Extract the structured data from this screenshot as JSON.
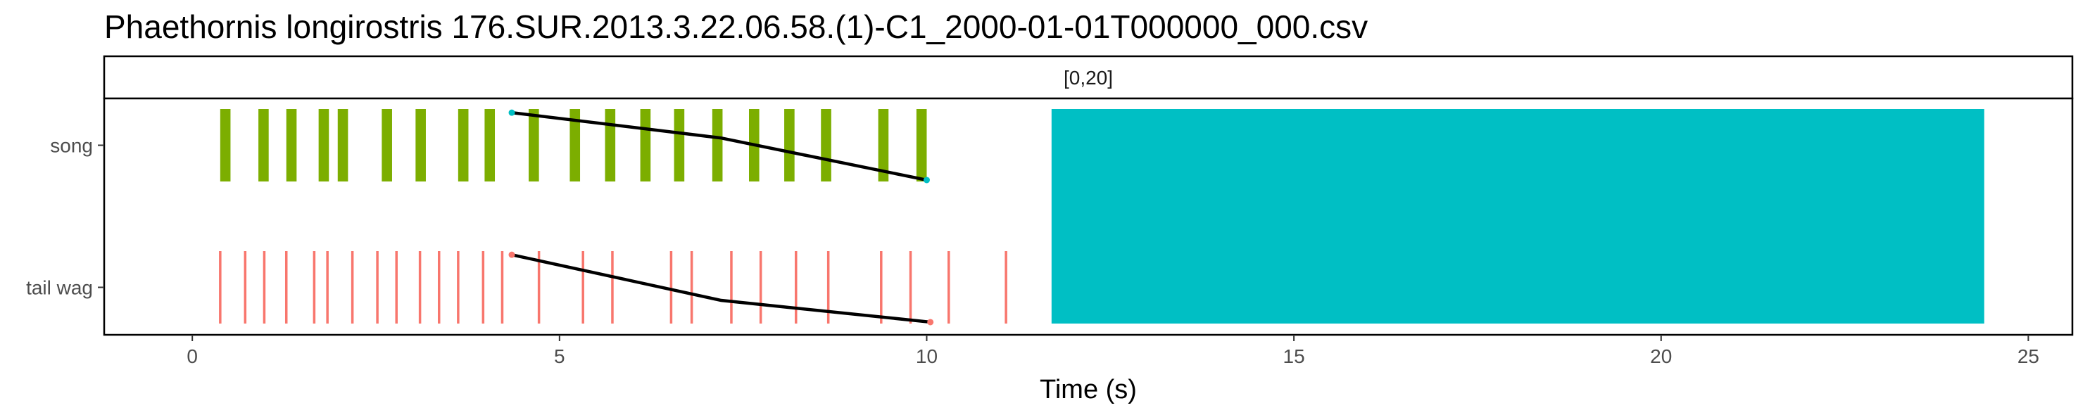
{
  "chart_data": {
    "type": "timeline",
    "title": "Phaethornis longirostris   176.SUR.2013.3.22.06.58.(1)-C1_2000-01-01T000000_000.csv",
    "facet_label": "[0,20]",
    "xlabel": "Time (s)",
    "xlim": [
      -1.2,
      25.6
    ],
    "x_ticks": [
      0,
      5,
      10,
      15,
      20,
      25
    ],
    "x_tick_labels": [
      "0",
      "5",
      "10",
      "15",
      "20",
      "25"
    ],
    "categories": [
      "song",
      "tail wag"
    ],
    "colors": {
      "song": "#7cae00",
      "tail_wag": "#f8766d",
      "block": "#00bfc4",
      "line": "#000000",
      "line_point_song": "#00bfc4",
      "line_point_tail": "#f8766d"
    },
    "song_events": [
      {
        "start": 0.38,
        "end": 0.52
      },
      {
        "start": 0.9,
        "end": 1.04
      },
      {
        "start": 1.28,
        "end": 1.42
      },
      {
        "start": 1.72,
        "end": 1.86
      },
      {
        "start": 1.98,
        "end": 2.12
      },
      {
        "start": 2.58,
        "end": 2.72
      },
      {
        "start": 3.04,
        "end": 3.18
      },
      {
        "start": 3.62,
        "end": 3.76
      },
      {
        "start": 3.98,
        "end": 4.12
      },
      {
        "start": 4.58,
        "end": 4.72
      },
      {
        "start": 5.14,
        "end": 5.28
      },
      {
        "start": 5.62,
        "end": 5.76
      },
      {
        "start": 6.1,
        "end": 6.24
      },
      {
        "start": 6.56,
        "end": 6.7
      },
      {
        "start": 7.08,
        "end": 7.22
      },
      {
        "start": 7.58,
        "end": 7.72
      },
      {
        "start": 8.06,
        "end": 8.2
      },
      {
        "start": 8.56,
        "end": 8.7
      },
      {
        "start": 9.34,
        "end": 9.48
      },
      {
        "start": 9.86,
        "end": 10.0
      }
    ],
    "song_block": {
      "start": 11.7,
      "end": 24.4
    },
    "tail_wag_events": [
      0.38,
      0.72,
      0.98,
      1.28,
      1.66,
      1.84,
      2.18,
      2.52,
      2.78,
      3.1,
      3.36,
      3.62,
      3.96,
      4.22,
      4.72,
      5.32,
      5.72,
      6.52,
      6.8,
      7.34,
      7.74,
      8.22,
      8.66,
      9.38,
      9.78,
      10.3,
      11.08
    ],
    "song_line": [
      {
        "x": 4.35,
        "y": 0.95
      },
      {
        "x": 7.2,
        "y": 0.6
      },
      {
        "x": 10.0,
        "y": 0.02
      }
    ],
    "tail_line": [
      {
        "x": 4.35,
        "y": 0.95
      },
      {
        "x": 7.2,
        "y": 0.32
      },
      {
        "x": 10.05,
        "y": 0.02
      }
    ]
  }
}
